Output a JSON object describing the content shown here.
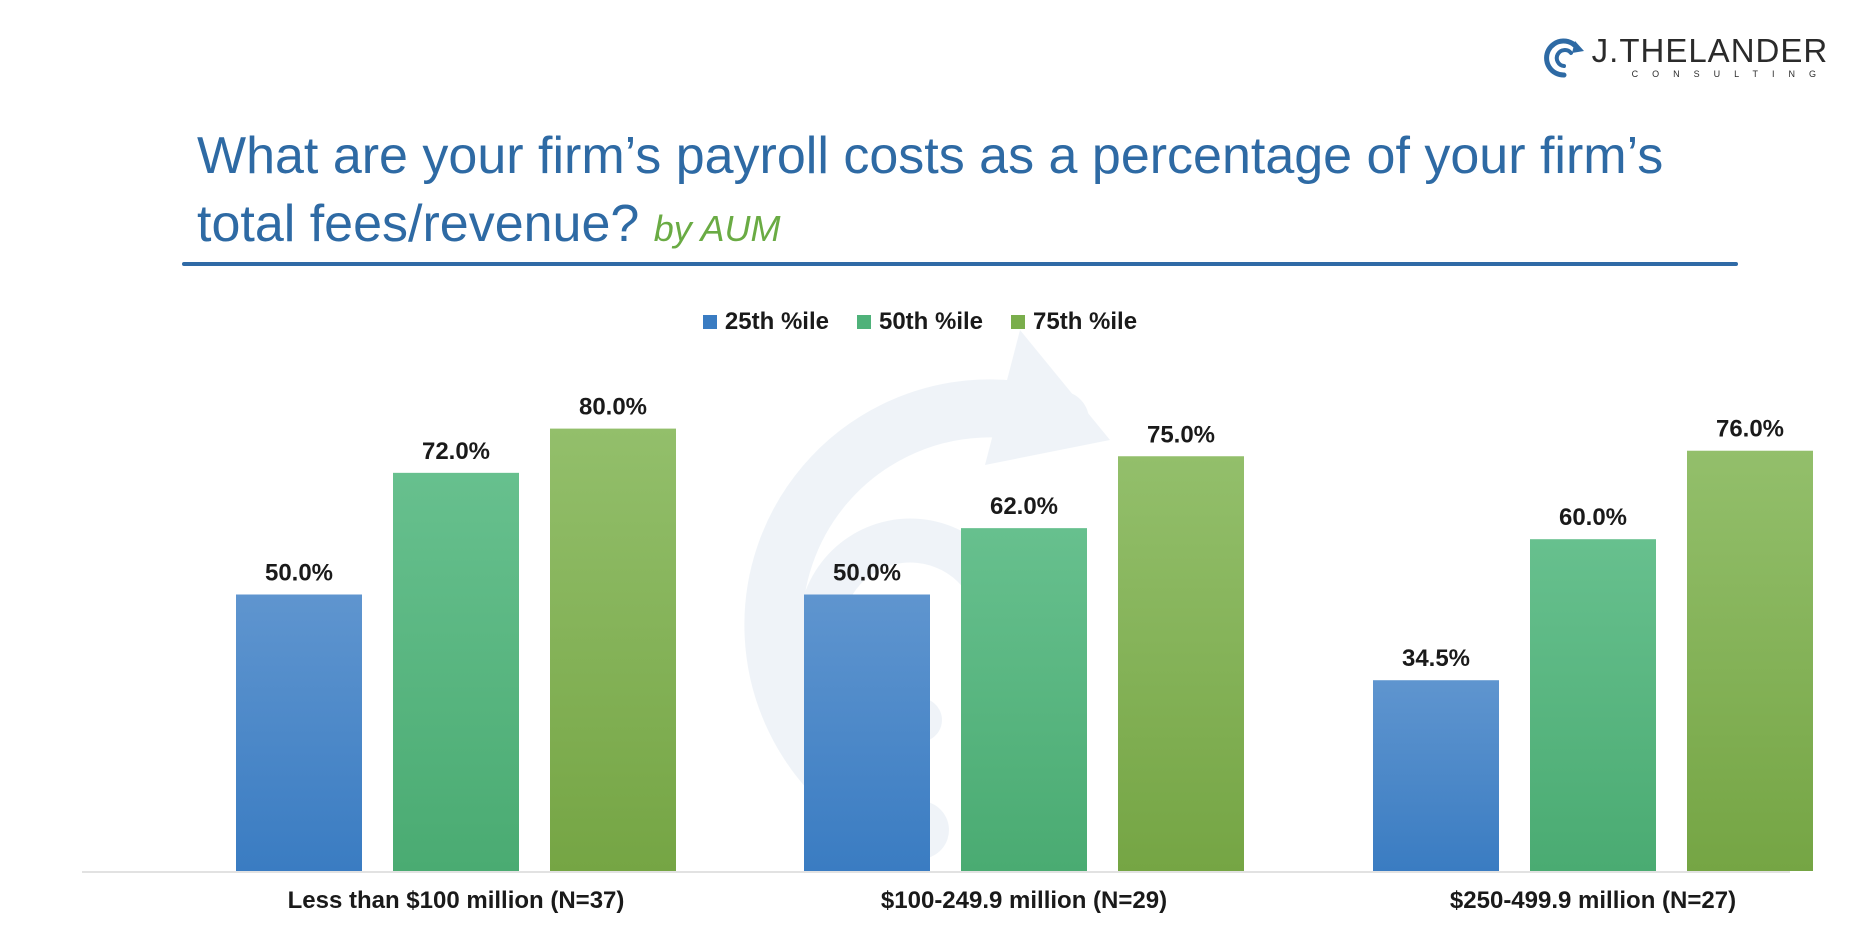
{
  "logo": {
    "name": "J.THELANDER",
    "tagline": "CONSULTING"
  },
  "title": "What are your firm’s payroll costs as a percentage of your firm’s total fees/revenue?",
  "subtitle": "by AUM",
  "colors": {
    "title": "#2e6aa4",
    "subtitle": "#6aab44",
    "rule": "#2f6aa6",
    "series_25": "#3a7cc2",
    "series_50": "#4fb27a",
    "series_75": "#7aae4c"
  },
  "chart_data": {
    "type": "bar",
    "categories": [
      "Less than $100 million (N=37)",
      "$100-249.9 million (N=29)",
      "$250-499.9 million (N=27)"
    ],
    "series": [
      {
        "name": "25th %ile",
        "values": [
          50.0,
          50.0,
          34.5
        ],
        "labels": [
          "50.0%",
          "50.0%",
          "34.5%"
        ],
        "color": "#3a7cc2",
        "color_light": "#5f95cf"
      },
      {
        "name": "50th %ile",
        "values": [
          72.0,
          62.0,
          60.0
        ],
        "labels": [
          "72.0%",
          "62.0%",
          "60.0%"
        ],
        "color": "#4aab72",
        "color_light": "#67c08e"
      },
      {
        "name": "75th %ile",
        "values": [
          80.0,
          75.0,
          76.0
        ],
        "labels": [
          "80.0%",
          "75.0%",
          "76.0%"
        ],
        "color": "#75a544",
        "color_light": "#93bf6b"
      }
    ],
    "ylim": [
      0,
      100
    ],
    "grid": false,
    "legend_position": "top-center",
    "xlabel": "",
    "ylabel": ""
  }
}
